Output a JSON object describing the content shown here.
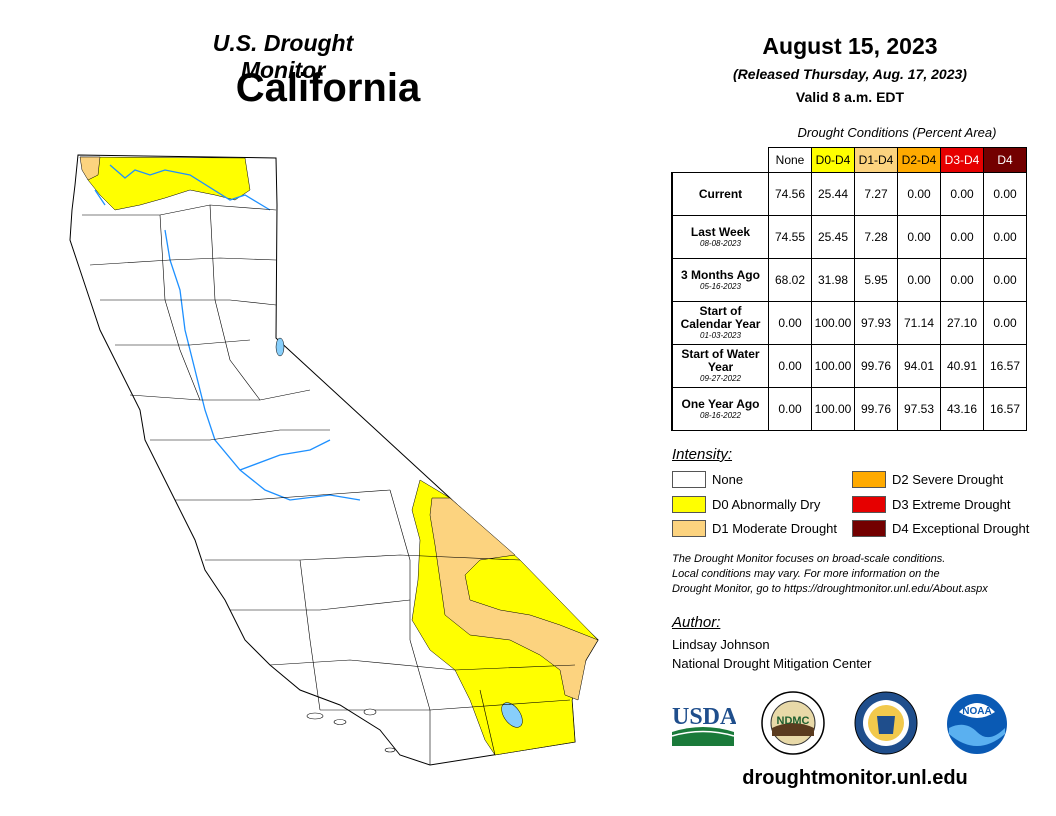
{
  "header": {
    "subtitle": "U.S. Drought Monitor",
    "state": "California"
  },
  "date_block": {
    "date": "August 15, 2023",
    "released": "(Released Thursday, Aug. 17, 2023)",
    "valid": "Valid 8 a.m. EDT"
  },
  "table": {
    "caption": "Drought Conditions (Percent Area)",
    "columns": [
      {
        "label": "None",
        "color": "#ffffff",
        "text": "#000000"
      },
      {
        "label": "D0-D4",
        "color": "#ffff00",
        "text": "#000000"
      },
      {
        "label": "D1-D4",
        "color": "#fcd37f",
        "text": "#000000"
      },
      {
        "label": "D2-D4",
        "color": "#ffaa00",
        "text": "#000000"
      },
      {
        "label": "D3-D4",
        "color": "#e60000",
        "text": "#ffffff"
      },
      {
        "label": "D4",
        "color": "#730000",
        "text": "#ffffff"
      }
    ],
    "rows": [
      {
        "label": "Current",
        "date": "",
        "values": [
          "74.56",
          "25.44",
          "7.27",
          "0.00",
          "0.00",
          "0.00"
        ]
      },
      {
        "label": "Last Week",
        "date": "08-08-2023",
        "values": [
          "74.55",
          "25.45",
          "7.28",
          "0.00",
          "0.00",
          "0.00"
        ]
      },
      {
        "label": "3 Months Ago",
        "date": "05-16-2023",
        "values": [
          "68.02",
          "31.98",
          "5.95",
          "0.00",
          "0.00",
          "0.00"
        ]
      },
      {
        "label": "Start of Calendar Year",
        "date": "01-03-2023",
        "values": [
          "0.00",
          "100.00",
          "97.93",
          "71.14",
          "27.10",
          "0.00"
        ]
      },
      {
        "label": "Start of Water Year",
        "date": "09-27-2022",
        "values": [
          "0.00",
          "100.00",
          "99.76",
          "94.01",
          "40.91",
          "16.57"
        ]
      },
      {
        "label": "One Year Ago",
        "date": "08-16-2022",
        "values": [
          "0.00",
          "100.00",
          "99.76",
          "97.53",
          "43.16",
          "16.57"
        ]
      }
    ]
  },
  "legend": {
    "title": "Intensity:",
    "items": [
      {
        "label": "None",
        "color": "#ffffff"
      },
      {
        "label": "D0 Abnormally Dry",
        "color": "#ffff00"
      },
      {
        "label": "D1 Moderate Drought",
        "color": "#fcd37f"
      },
      {
        "label": "D2 Severe Drought",
        "color": "#ffaa00"
      },
      {
        "label": "D3 Extreme Drought",
        "color": "#e60000"
      },
      {
        "label": "D4 Exceptional Drought",
        "color": "#730000"
      }
    ]
  },
  "note": {
    "line1": "The Drought Monitor focuses on broad-scale conditions.",
    "line2": "Local conditions may vary. For more information on the",
    "line3": "Drought Monitor, go to https://droughtmonitor.unl.edu/About.aspx"
  },
  "author": {
    "heading": "Author:",
    "name": "Lindsay Johnson",
    "org": "National Drought Mitigation Center"
  },
  "logos": {
    "usda": "USDA",
    "ndmc": "NDMC",
    "noaa": "NOAA"
  },
  "footer": {
    "url": "droughtmonitor.unl.edu"
  }
}
